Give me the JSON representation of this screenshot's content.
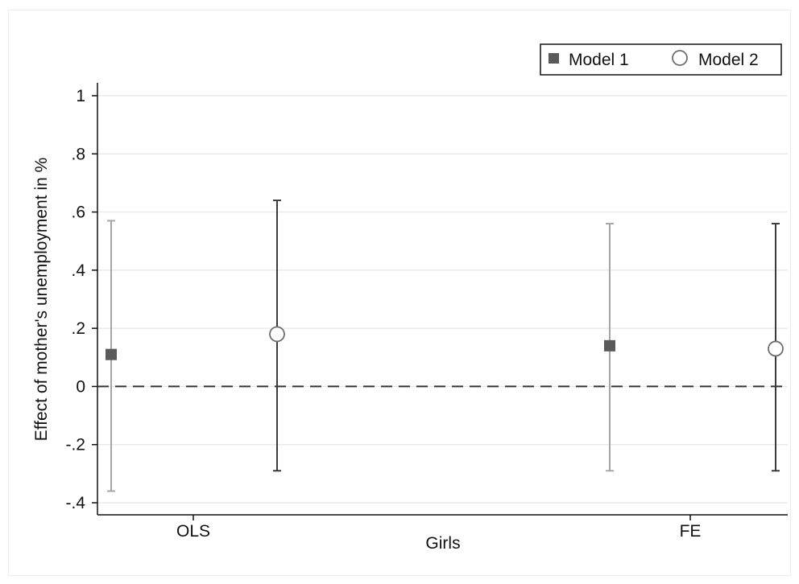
{
  "chart_data": {
    "type": "scatter",
    "subtype": "coefficient-plot-with-confidence-intervals",
    "title": "",
    "xlabel": "Girls",
    "ylabel": "Effect of mother's unemployment in %",
    "ylim": [
      -0.4,
      1.0
    ],
    "yticks": [
      1.0,
      0.8,
      0.6,
      0.4,
      0.2,
      0.0,
      -0.2,
      -0.4
    ],
    "ytick_labels": [
      "1",
      ".8",
      ".6",
      ".4",
      ".2",
      "0",
      "-.2",
      "-.4"
    ],
    "categories": [
      "OLS",
      "FE"
    ],
    "grid": true,
    "reference_line": {
      "y": 0,
      "style": "dashed"
    },
    "legend": {
      "position": "top-right"
    },
    "series": [
      {
        "name": "Model 1",
        "marker": "filled-square",
        "color": "#5a5a5a",
        "ci_color": "#a6a6a6",
        "points": [
          {
            "category": "OLS",
            "estimate": 0.11,
            "ci_low": -0.36,
            "ci_high": 0.57
          },
          {
            "category": "FE",
            "estimate": 0.14,
            "ci_low": -0.29,
            "ci_high": 0.56
          }
        ]
      },
      {
        "name": "Model 2",
        "marker": "hollow-circle",
        "color": "#6e6e6e",
        "ci_color": "#3a3a3a",
        "points": [
          {
            "category": "OLS",
            "estimate": 0.18,
            "ci_low": -0.29,
            "ci_high": 0.64
          },
          {
            "category": "FE",
            "estimate": 0.13,
            "ci_low": -0.29,
            "ci_high": 0.56
          }
        ]
      }
    ]
  }
}
